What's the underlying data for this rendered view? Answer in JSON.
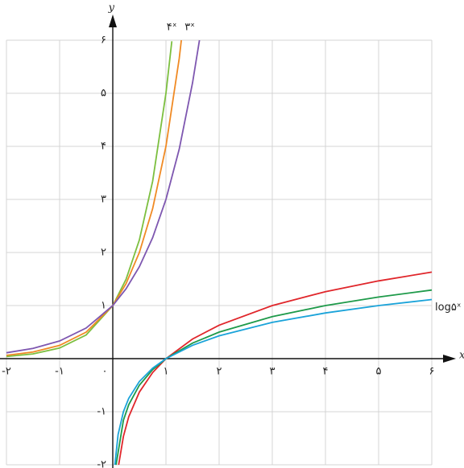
{
  "chart_data": {
    "type": "line",
    "x_label": "x",
    "y_label": "y",
    "xlim": [
      -2,
      6
    ],
    "ylim": [
      -2,
      6
    ],
    "xticks": [
      {
        "value": -2,
        "label": "-۲"
      },
      {
        "value": -1,
        "label": "-۱"
      },
      {
        "value": 0,
        "label": "۰"
      },
      {
        "value": 1,
        "label": "۱"
      },
      {
        "value": 2,
        "label": "۲"
      },
      {
        "value": 3,
        "label": "۳"
      },
      {
        "value": 4,
        "label": "۴"
      },
      {
        "value": 5,
        "label": "۵"
      },
      {
        "value": 6,
        "label": "۶"
      }
    ],
    "yticks": [
      {
        "value": -2,
        "label": "-۲"
      },
      {
        "value": -1,
        "label": "-۱"
      },
      {
        "value": 1,
        "label": "۱"
      },
      {
        "value": 2,
        "label": "۲"
      },
      {
        "value": 3,
        "label": "۳"
      },
      {
        "value": 4,
        "label": "۴"
      },
      {
        "value": 5,
        "label": "۵"
      },
      {
        "value": 6,
        "label": "۶"
      }
    ],
    "grid": true,
    "series": [
      {
        "color": "#7cbf3f",
        "x": [
          -2,
          -1.5,
          -1,
          -0.5,
          0,
          0.25,
          0.5,
          0.75,
          1,
          1.11
        ],
        "values": [
          0.04,
          0.089,
          0.2,
          0.447,
          1,
          1.495,
          2.236,
          3.344,
          5,
          5.98
        ]
      },
      {
        "name": "۴ˣ",
        "color": "#f08a24",
        "x": [
          -2,
          -1.5,
          -1,
          -0.5,
          0,
          0.25,
          0.5,
          0.75,
          1,
          1.25,
          1.29
        ],
        "values": [
          0.0625,
          0.125,
          0.25,
          0.5,
          1,
          1.414,
          2,
          2.828,
          4,
          5.657,
          6
        ]
      },
      {
        "name": "۳ˣ",
        "color": "#7e57b0",
        "x": [
          -2,
          -1.5,
          -1,
          -0.5,
          0,
          0.25,
          0.5,
          0.75,
          1,
          1.25,
          1.5,
          1.63
        ],
        "values": [
          0.111,
          0.192,
          0.333,
          0.577,
          1,
          1.316,
          1.732,
          2.28,
          3,
          3.948,
          5.196,
          6
        ]
      },
      {
        "color": "#e0262b",
        "x": [
          0.111,
          0.2,
          0.3,
          0.5,
          0.75,
          1,
          1.5,
          2,
          3,
          4,
          5,
          6
        ],
        "values": [
          -2,
          -1.465,
          -1.096,
          -0.631,
          -0.262,
          0,
          0.369,
          0.631,
          1,
          1.262,
          1.465,
          1.631
        ]
      },
      {
        "color": "#1e9a4a",
        "x": [
          0.0625,
          0.2,
          0.3,
          0.5,
          0.75,
          1,
          1.5,
          2,
          3,
          4,
          5,
          6
        ],
        "values": [
          -2,
          -1.161,
          -0.868,
          -0.5,
          -0.208,
          0,
          0.292,
          0.5,
          0.792,
          1,
          1.161,
          1.292
        ]
      },
      {
        "name": "log۵ˣ",
        "color": "#1aa3d9",
        "x": [
          0.04,
          0.1,
          0.2,
          0.3,
          0.5,
          0.75,
          1,
          1.5,
          2,
          3,
          4,
          5,
          6
        ],
        "values": [
          -2,
          -1.431,
          -1,
          -0.748,
          -0.431,
          -0.179,
          0,
          0.252,
          0.431,
          0.683,
          0.861,
          1,
          1.113
        ]
      }
    ]
  }
}
